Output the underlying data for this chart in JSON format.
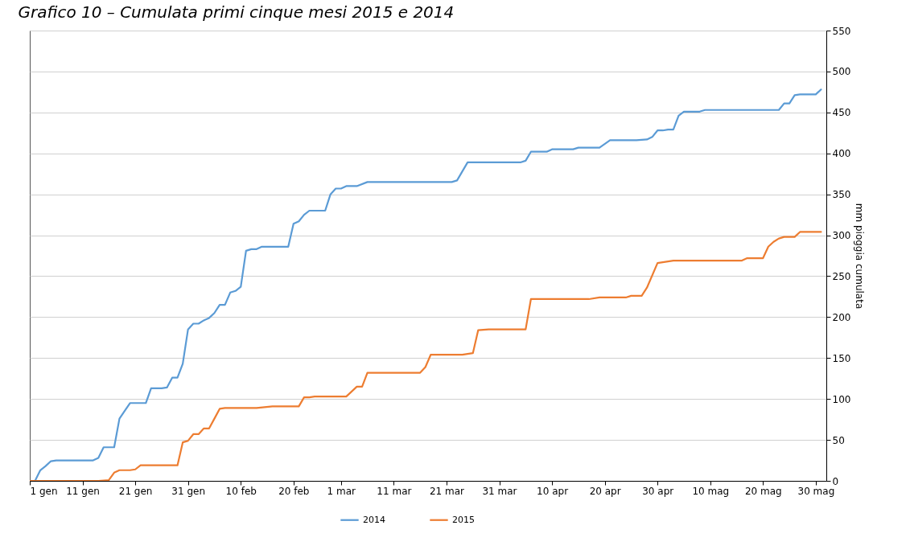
{
  "chart_data": {
    "type": "line",
    "title": "Grafico 10 – Cumulata primi cinque mesi 2015 e 2014",
    "ylabel": "mm pioggia cumulata",
    "xlim": [
      "--01-01",
      "--06-01"
    ],
    "xticks": [
      {
        "value": "--01-01",
        "label": "1 gen"
      },
      {
        "value": "--01-11",
        "label": "11 gen"
      },
      {
        "value": "--01-21",
        "label": "21 gen"
      },
      {
        "value": "--01-31",
        "label": "31 gen"
      },
      {
        "value": "--02-10",
        "label": "10 feb"
      },
      {
        "value": "--02-20",
        "label": "20 feb"
      },
      {
        "value": "--03-01",
        "label": "1 mar"
      },
      {
        "value": "--03-11",
        "label": "11 mar"
      },
      {
        "value": "--03-21",
        "label": "21 mar"
      },
      {
        "value": "--03-31",
        "label": "31 mar"
      },
      {
        "value": "--04-10",
        "label": "10 apr"
      },
      {
        "value": "--04-20",
        "label": "20 apr"
      },
      {
        "value": "--04-30",
        "label": "30 apr"
      },
      {
        "value": "--05-10",
        "label": "10 mag"
      },
      {
        "value": "--05-20",
        "label": "20 mag"
      },
      {
        "value": "--05-30",
        "label": "30 mag"
      }
    ],
    "ylim": [
      0,
      550
    ],
    "yticks": [
      0,
      50,
      100,
      150,
      200,
      250,
      300,
      350,
      400,
      450,
      500,
      550
    ],
    "grid": "y",
    "legend": "bottom",
    "series": [
      {
        "name": "2014",
        "color": "#5b9bd5",
        "x": [
          "--01-01",
          "--01-02",
          "--01-03",
          "--01-04",
          "--01-05",
          "--01-06",
          "--01-13",
          "--01-14",
          "--01-15",
          "--01-17",
          "--01-18",
          "--01-20",
          "--01-23",
          "--01-24",
          "--01-26",
          "--01-27",
          "--01-28",
          "--01-29",
          "--01-30",
          "--01-31",
          "--02-01",
          "--02-02",
          "--02-03",
          "--02-04",
          "--02-05",
          "--02-06",
          "--02-07",
          "--02-08",
          "--02-09",
          "--02-10",
          "--02-11",
          "--02-12",
          "--02-13",
          "--02-14",
          "--02-19",
          "--02-20",
          "--02-21",
          "--02-22",
          "--02-23",
          "--02-26",
          "--02-27",
          "--02-28",
          "--03-01",
          "--03-02",
          "--03-04",
          "--03-06",
          "--03-22",
          "--03-23",
          "--03-25",
          "--03-29",
          "--04-04",
          "--04-05",
          "--04-06",
          "--04-09",
          "--04-10",
          "--04-14",
          "--04-15",
          "--04-19",
          "--04-21",
          "--04-26",
          "--04-28",
          "--04-29",
          "--04-30",
          "--05-01",
          "--05-02",
          "--05-03",
          "--05-04",
          "--05-05",
          "--05-08",
          "--05-09",
          "--05-23",
          "--05-24",
          "--05-25",
          "--05-26",
          "--05-27",
          "--05-30",
          "--05-31"
        ],
        "values": [
          0,
          0,
          13,
          18,
          24,
          25,
          25,
          28,
          41,
          41,
          76,
          95,
          95,
          113,
          113,
          114,
          126,
          126,
          143,
          185,
          192,
          192,
          196,
          199,
          205,
          215,
          215,
          230,
          232,
          237,
          281,
          283,
          283,
          286,
          286,
          314,
          317,
          325,
          330,
          330,
          350,
          357,
          357,
          360,
          360,
          365,
          365,
          367,
          389,
          389,
          389,
          391,
          402,
          402,
          405,
          405,
          407,
          407,
          416,
          416,
          417,
          420,
          428,
          428,
          429,
          429,
          446,
          451,
          451,
          453,
          453,
          461,
          461,
          471,
          472,
          472,
          478
        ]
      },
      {
        "name": "2015",
        "color": "#ed7d31",
        "x": [
          "--01-01",
          "--01-14",
          "--01-16",
          "--01-17",
          "--01-18",
          "--01-20",
          "--01-21",
          "--01-22",
          "--01-29",
          "--01-30",
          "--01-31",
          "--02-01",
          "--02-02",
          "--02-03",
          "--02-04",
          "--02-05",
          "--02-06",
          "--02-07",
          "--02-13",
          "--02-16",
          "--02-21",
          "--02-22",
          "--02-23",
          "--02-24",
          "--03-02",
          "--03-04",
          "--03-05",
          "--03-06",
          "--03-16",
          "--03-17",
          "--03-18",
          "--03-24",
          "--03-26",
          "--03-27",
          "--03-29",
          "--04-05",
          "--04-06",
          "--04-17",
          "--04-19",
          "--04-24",
          "--04-25",
          "--04-27",
          "--04-28",
          "--04-30",
          "--05-01",
          "--05-03",
          "--05-16",
          "--05-17",
          "--05-20",
          "--05-21",
          "--05-22",
          "--05-23",
          "--05-24",
          "--05-26",
          "--05-27",
          "--05-31"
        ],
        "values": [
          0,
          0,
          1,
          10,
          13,
          13,
          14,
          19,
          19,
          47,
          49,
          57,
          57,
          64,
          64,
          76,
          88,
          89,
          89,
          91,
          91,
          102,
          102,
          103,
          103,
          115,
          115,
          132,
          132,
          139,
          154,
          154,
          156,
          184,
          185,
          185,
          222,
          222,
          224,
          224,
          226,
          226,
          236,
          266,
          267,
          269,
          269,
          272,
          272,
          286,
          292,
          296,
          298,
          298,
          304,
          304
        ]
      }
    ]
  }
}
